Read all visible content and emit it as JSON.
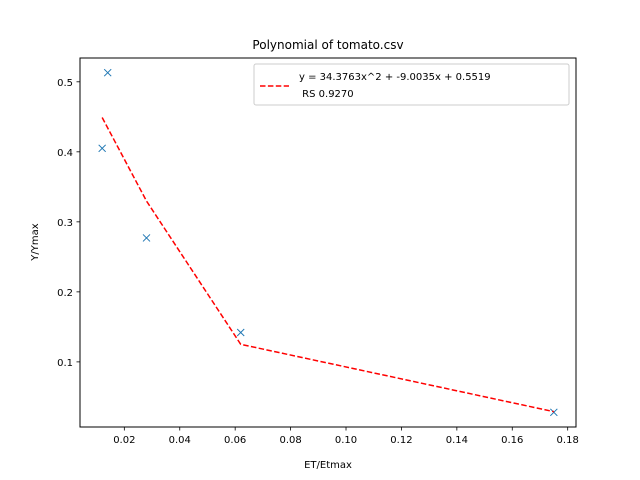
{
  "chart_data": {
    "type": "scatter",
    "title": "Polynomial of tomato.csv",
    "xlabel": "ET/Etmax",
    "ylabel": "Y/Ymax",
    "xlim": [
      0.004,
      0.183
    ],
    "ylim": [
      0.007,
      0.534
    ],
    "xticks": [
      0.02,
      0.04,
      0.06,
      0.08,
      0.1,
      0.12,
      0.14,
      0.16,
      0.18
    ],
    "xtick_labels": [
      "0.02",
      "0.04",
      "0.06",
      "0.08",
      "0.10",
      "0.12",
      "0.14",
      "0.16",
      "0.18"
    ],
    "yticks": [
      0.1,
      0.2,
      0.3,
      0.4,
      0.5
    ],
    "ytick_labels": [
      "0.1",
      "0.2",
      "0.3",
      "0.4",
      "0.5"
    ],
    "grid": false,
    "legend_position": "top-right",
    "series": [
      {
        "kind": "scatter",
        "marker": "x",
        "color": "#1f77b4",
        "x": [
          0.012,
          0.014,
          0.028,
          0.062,
          0.175
        ],
        "y": [
          0.405,
          0.513,
          0.277,
          0.142,
          0.028
        ]
      },
      {
        "kind": "line",
        "style": "dashed",
        "color": "#ff0000",
        "name": "y = 34.3763x^2 + -9.0035x + 0.5519",
        "name_line2": " RS 0.9270",
        "x": [
          0.012,
          0.028,
          0.062,
          0.175
        ],
        "y": [
          0.449,
          0.3297,
          0.1251,
          0.0289
        ]
      }
    ]
  }
}
